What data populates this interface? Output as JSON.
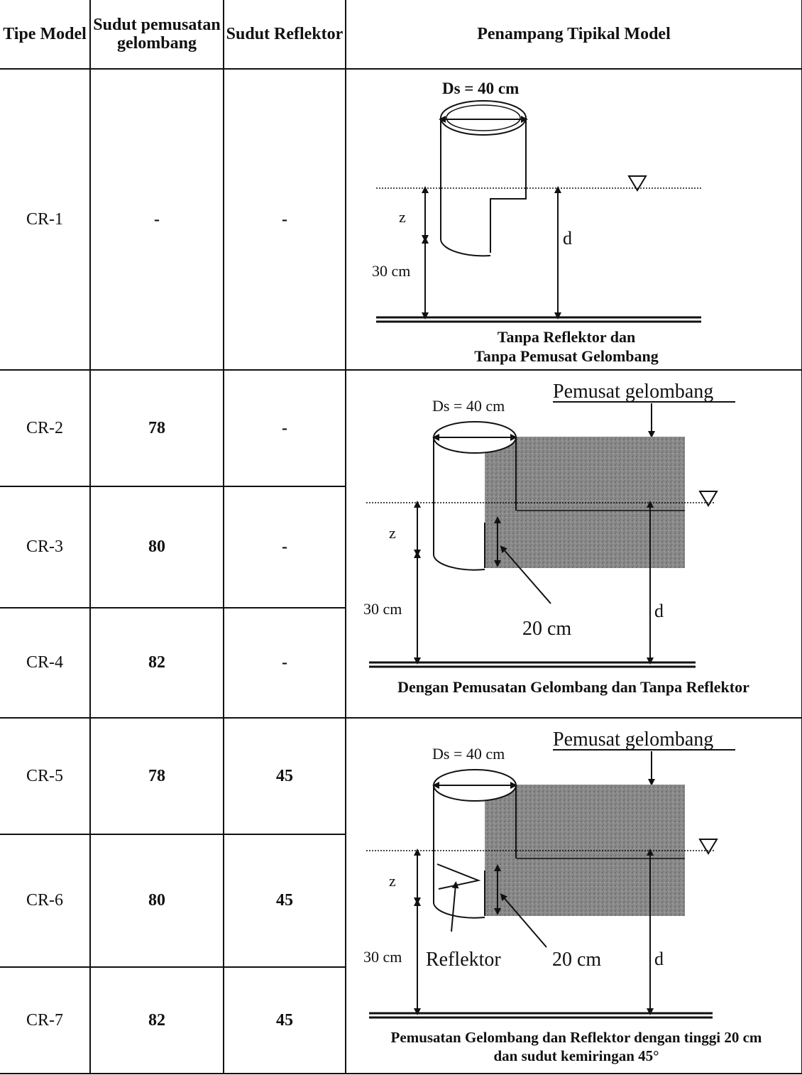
{
  "table": {
    "headers": {
      "type": "Tipe Model",
      "wave_angle": "Sudut pemusatan gelombang",
      "reflector_angle": "Sudut Reflektor",
      "section": "Penampang Tipikal Model"
    },
    "rows": [
      {
        "type": "CR-1",
        "wave_angle": "-",
        "reflector_angle": "-"
      },
      {
        "type": "CR-2",
        "wave_angle": "78",
        "reflector_angle": "-"
      },
      {
        "type": "CR-3",
        "wave_angle": "80",
        "reflector_angle": "-"
      },
      {
        "type": "CR-4",
        "wave_angle": "82",
        "reflector_angle": "-"
      },
      {
        "type": "CR-5",
        "wave_angle": "78",
        "reflector_angle": "45"
      },
      {
        "type": "CR-6",
        "wave_angle": "80",
        "reflector_angle": "45"
      },
      {
        "type": "CR-7",
        "wave_angle": "82",
        "reflector_angle": "45"
      }
    ]
  },
  "diagrams": {
    "d1": {
      "diameter": "Ds = 40 cm",
      "z": "z",
      "d": "d",
      "base": "30 cm",
      "caption_line1": "Tanpa Reflektor dan",
      "caption_line2": "Tanpa Pemusat Gelombang"
    },
    "d2": {
      "focuser": "Pemusat gelombang",
      "diameter": "Ds = 40 cm",
      "z": "z",
      "d": "d",
      "base": "30 cm",
      "height": "20 cm",
      "caption": "Dengan Pemusatan Gelombang dan Tanpa Reflektor"
    },
    "d3": {
      "focuser": "Pemusat gelombang",
      "diameter": "Ds = 40 cm",
      "z": "z",
      "d": "d",
      "base": "30 cm",
      "height": "20 cm",
      "reflector": "Reflektor",
      "caption_line1": "Pemusatan Gelombang dan  Reflektor dengan tinggi 20 cm",
      "caption_line2": "dan sudut kemiringan 45°"
    }
  }
}
